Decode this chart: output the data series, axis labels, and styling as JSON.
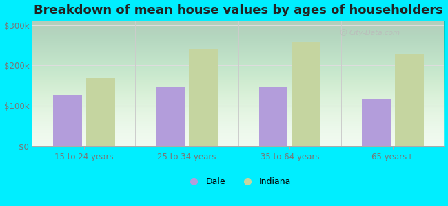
{
  "title": "Breakdown of mean house values by ages of householders",
  "categories": [
    "15 to 24 years",
    "25 to 34 years",
    "35 to 64 years",
    "65 years+"
  ],
  "dale_values": [
    128000,
    148000,
    147000,
    118000
  ],
  "indiana_values": [
    168000,
    242000,
    258000,
    228000
  ],
  "dale_color": "#b39ddb",
  "indiana_color": "#c5d5a0",
  "background_outer": "#00eeff",
  "bar_width": 0.28,
  "ylim": [
    0,
    310000
  ],
  "yticks": [
    0,
    100000,
    200000,
    300000
  ],
  "legend_dale": "Dale",
  "legend_indiana": "Indiana",
  "title_fontsize": 13,
  "grid_color": "#dddddd",
  "watermark": "City-Data.com"
}
